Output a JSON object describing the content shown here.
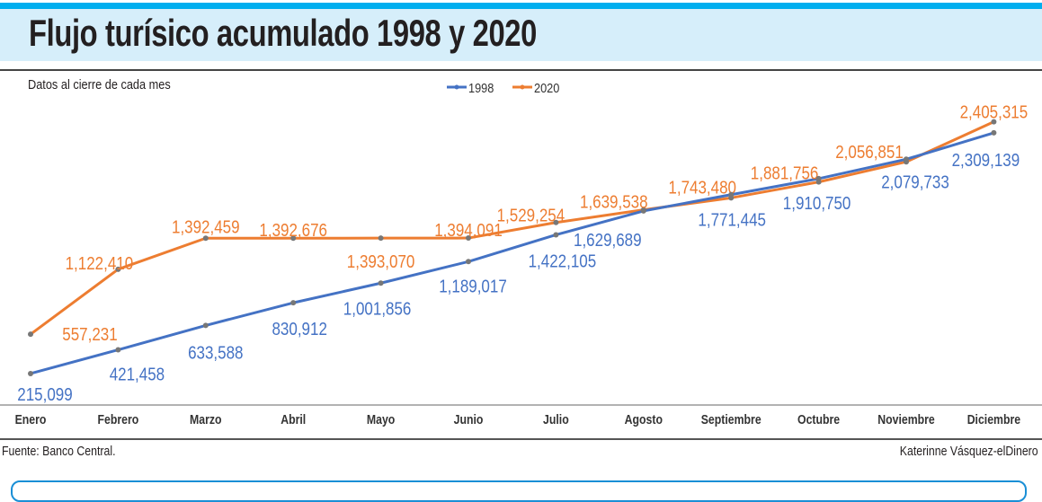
{
  "header": {
    "title": "Flujo turísico acumulado 1998 y 2020",
    "subtitle": "Datos al cierre de cada mes"
  },
  "footer": {
    "source": "Fuente: Banco Central.",
    "author": "Katerinne Vásquez-elDinero"
  },
  "colors": {
    "s1998": "#4472c4",
    "s2020": "#ed7d31",
    "accent": "#00aeef",
    "band": "#d6eefa"
  },
  "chart_data": {
    "type": "line",
    "title": "Flujo turísico acumulado 1998 y 2020",
    "subtitle": "Datos al cierre de cada mes",
    "categories": [
      "Enero",
      "Febrero",
      "Marzo",
      "Abril",
      "Mayo",
      "Junio",
      "Julio",
      "Agosto",
      "Septiembre",
      "Octubre",
      "Noviembre",
      "Diciembre"
    ],
    "series": [
      {
        "name": "1998",
        "values": [
          215099,
          421458,
          633588,
          830912,
          1001856,
          1189017,
          1422105,
          1629689,
          1771445,
          1910750,
          2079733,
          2309139
        ],
        "labels": [
          "215,099",
          "421,458",
          "633,588",
          "830,912",
          "1,001,856",
          "1,189,017",
          "1,422,105",
          "1,629,689",
          "1,771,445",
          "1,910,750",
          "2,079,733",
          "2,309,139"
        ]
      },
      {
        "name": "2020",
        "values": [
          557231,
          1122410,
          1392459,
          1392676,
          1393070,
          1394091,
          1529254,
          1639538,
          1743480,
          1881756,
          2056851,
          2405315
        ],
        "labels": [
          "557,231",
          "1,122,410",
          "1,392,459",
          "1,392,676",
          "1,393,070",
          "1,394,091",
          "1,529,254",
          "1,639,538",
          "1,743,480",
          "1,881,756",
          "2,056,851",
          "2,405,315"
        ]
      }
    ],
    "xlabel": "",
    "ylabel": "",
    "ylim": [
      0,
      2600000
    ],
    "grid": false,
    "legend": "top-center"
  }
}
